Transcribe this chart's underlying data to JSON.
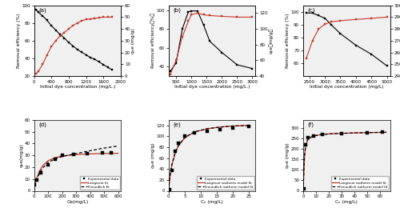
{
  "panel_a": {
    "label": "(a)",
    "removal_x": [
      50,
      100,
      200,
      300,
      400,
      500,
      600,
      700,
      800,
      900,
      1000,
      1100,
      1200,
      1300,
      1400,
      1500,
      1600,
      1700,
      1800
    ],
    "removal_y": [
      95,
      92,
      88,
      83,
      77,
      72,
      67,
      63,
      58,
      54,
      50,
      47,
      44,
      41,
      39,
      36,
      33,
      30,
      27
    ],
    "qe_x": [
      50,
      100,
      200,
      300,
      400,
      500,
      600,
      700,
      800,
      900,
      1000,
      1100,
      1200,
      1300,
      1400,
      1500,
      1600,
      1700,
      1800
    ],
    "qe_y": [
      2,
      4,
      10,
      18,
      25,
      30,
      34,
      37,
      40,
      43,
      45,
      47,
      48,
      48.5,
      49,
      49.5,
      50,
      50,
      50
    ],
    "xlim": [
      0,
      2000
    ],
    "xticks": [
      0,
      400,
      800,
      1200,
      1600,
      2000
    ],
    "ylim_removal": [
      20,
      100
    ],
    "ylim_qe": [
      0,
      60
    ],
    "yticks_removal": [
      20,
      40,
      60,
      80,
      100
    ],
    "yticks_qe": [
      0,
      10,
      20,
      30,
      40,
      50,
      60
    ],
    "xlabel": "Initial dye concentration (mg/L.)",
    "ylabel_left": "Removal efficiency (%)",
    "ylabel_right": "qₑe (mg/g)"
  },
  "panel_b": {
    "label": "(b)",
    "removal_x": [
      300,
      500,
      700,
      900,
      1000,
      1200,
      1400,
      1600,
      2000,
      2500,
      3000
    ],
    "removal_y": [
      35,
      44,
      80,
      98,
      99,
      99,
      84,
      67,
      55,
      42,
      38
    ],
    "qe_x": [
      300,
      500,
      700,
      900,
      1000,
      1200,
      1400,
      1600,
      2000,
      2500,
      3000
    ],
    "qe_y": [
      42,
      60,
      90,
      110,
      118,
      120,
      118,
      117,
      116,
      115,
      115
    ],
    "xlim": [
      250,
      3100
    ],
    "xticks": [
      500,
      1000,
      1500,
      2000,
      2500,
      3000
    ],
    "ylim_removal": [
      30,
      105
    ],
    "ylim_qe": [
      40,
      130
    ],
    "yticks_removal": [
      40,
      60,
      80,
      100
    ],
    "yticks_qe": [
      40,
      60,
      80,
      100,
      120
    ],
    "xlabel": "Initial dye concentration (mg/L.)",
    "ylabel_left": "Removal efficiency（%）",
    "ylabel_right": "qₑe（mg/g）"
  },
  "panel_c": {
    "label": "(c)",
    "removal_x": [
      2400,
      2600,
      2800,
      3000,
      3200,
      3500,
      4000,
      4500,
      5000
    ],
    "removal_y": [
      99,
      99,
      97,
      95,
      90,
      83,
      74,
      67,
      58
    ],
    "qe_x": [
      2400,
      2600,
      2800,
      3000,
      3200,
      3500,
      4000,
      4500,
      5000
    ],
    "qe_y": [
      255,
      270,
      280,
      284,
      286,
      287,
      288,
      289,
      290
    ],
    "xlim": [
      2300,
      5100
    ],
    "xticks": [
      2500,
      3000,
      3500,
      4000,
      4500,
      5000
    ],
    "ylim_removal": [
      50,
      105
    ],
    "ylim_qe": [
      240,
      300
    ],
    "yticks_removal": [
      60,
      70,
      80,
      90,
      100
    ],
    "yticks_qe": [
      240,
      250,
      260,
      270,
      280,
      290,
      300
    ],
    "xlabel": "Initial dye concentration (mg/L)",
    "ylabel_left": "Removal efficiency (%)",
    "ylabel_right": "qₑe (mg/g)"
  },
  "panel_d": {
    "label": "(d)",
    "exp_x": [
      5,
      20,
      50,
      100,
      150,
      200,
      280,
      380,
      490,
      550
    ],
    "exp_y": [
      5,
      9,
      15,
      22,
      27,
      30,
      31,
      31.5,
      32,
      32
    ],
    "langmuir_x_fine": [
      0,
      5,
      10,
      20,
      40,
      60,
      100,
      150,
      200,
      280,
      380,
      490,
      600
    ],
    "langmuir_y_fine": [
      0,
      4,
      7,
      11,
      17,
      21,
      25.5,
      28,
      29.5,
      30.5,
      31.2,
      31.6,
      31.8
    ],
    "freundlich_x_fine": [
      0,
      5,
      10,
      20,
      40,
      60,
      100,
      150,
      200,
      280,
      380,
      490,
      600
    ],
    "freundlich_y_fine": [
      0,
      3,
      6,
      10,
      15,
      19,
      24,
      27,
      29,
      31,
      33.5,
      36,
      38
    ],
    "xlim": [
      0,
      620
    ],
    "ylim": [
      0,
      60
    ],
    "xticks": [
      0,
      100,
      200,
      300,
      400,
      500,
      600
    ],
    "yticks": [
      0,
      10,
      20,
      30,
      40,
      50,
      60
    ],
    "xlabel": "Ce(mg/L)",
    "ylabel": "qₑe(mg/g)",
    "legend": [
      "Experimental data",
      "Langmuir fit",
      "Freundlich fit"
    ]
  },
  "panel_e": {
    "label": "(e)",
    "exp_x": [
      0.3,
      1,
      2,
      3,
      5,
      8,
      12,
      16,
      20,
      25
    ],
    "exp_y": [
      2,
      38,
      72,
      88,
      100,
      107,
      110,
      113,
      115,
      118
    ],
    "langmuir_x_fine": [
      0,
      0.3,
      0.5,
      1,
      2,
      3,
      5,
      8,
      12,
      16,
      20,
      25
    ],
    "langmuir_y_fine": [
      0,
      18,
      28,
      46,
      68,
      82,
      97,
      108,
      114,
      117,
      119,
      120
    ],
    "freundlich_x_fine": [
      0,
      0.3,
      0.5,
      1,
      2,
      3,
      5,
      8,
      12,
      16,
      20,
      25
    ],
    "freundlich_y_fine": [
      0,
      20,
      30,
      48,
      70,
      83,
      98,
      108,
      114,
      117,
      119,
      120
    ],
    "xlim": [
      0,
      27
    ],
    "ylim": [
      0,
      130
    ],
    "xticks": [
      0,
      5,
      10,
      15,
      20,
      25
    ],
    "yticks": [
      0,
      20,
      40,
      60,
      80,
      100,
      120
    ],
    "xlabel": "Cₑ (mg/L)",
    "ylabel": "qₑe (mg/g)",
    "legend": [
      "Experimental data",
      "Langmuir isotherm model fit",
      "Freundlich isotherm model fit"
    ]
  },
  "panel_f": {
    "label": "(f)",
    "exp_x": [
      0.5,
      2,
      4,
      8,
      15,
      30,
      50,
      62
    ],
    "exp_y": [
      10,
      220,
      255,
      265,
      272,
      276,
      280,
      282
    ],
    "langmuir_x_fine": [
      0,
      0.5,
      1,
      2,
      4,
      8,
      15,
      25,
      40,
      55,
      65
    ],
    "langmuir_y_fine": [
      0,
      80,
      160,
      220,
      250,
      263,
      271,
      275,
      278,
      280,
      281
    ],
    "freundlich_x_fine": [
      0,
      0.5,
      1,
      2,
      4,
      8,
      15,
      25,
      40,
      55,
      65
    ],
    "freundlich_y_fine": [
      0,
      90,
      165,
      222,
      251,
      263,
      271,
      275,
      278,
      280,
      281
    ],
    "xlim": [
      0,
      68
    ],
    "ylim": [
      0,
      340
    ],
    "xticks": [
      0,
      10,
      20,
      30,
      40,
      50,
      60
    ],
    "yticks": [
      0,
      50,
      100,
      150,
      200,
      250,
      300
    ],
    "xlabel": "Cₑ (mg/L)",
    "ylabel": "qₑe (mg/g)",
    "legend": [
      "Experimental data",
      "Langmuir isotherm model fit",
      "Freundlich isotherm model fit"
    ]
  },
  "colors": {
    "black_line": "#000000",
    "red_line": "#c0392b",
    "background": "#f0f0f0"
  }
}
